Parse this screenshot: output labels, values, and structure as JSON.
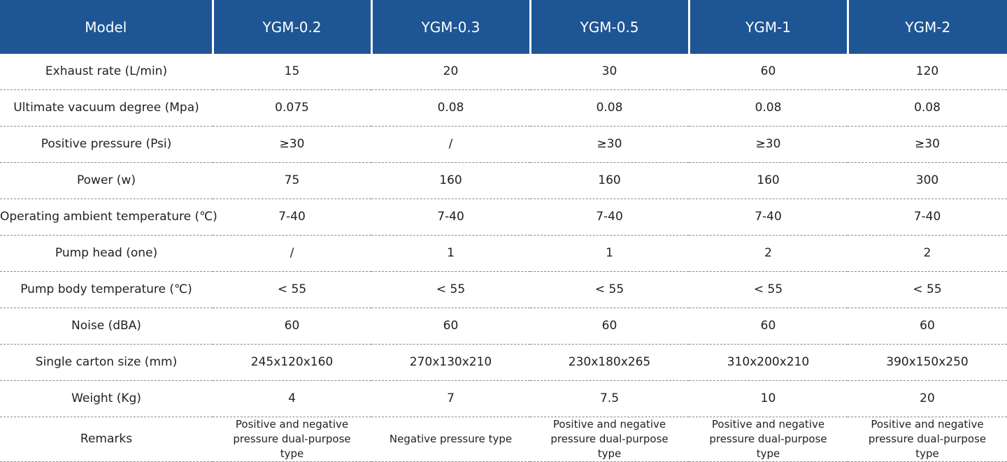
{
  "header": {
    "model_label": "Model",
    "models": [
      "YGM-0.2",
      "YGM-0.3",
      "YGM-0.5",
      "YGM-1",
      "YGM-2"
    ]
  },
  "rows": [
    {
      "label": "Exhaust rate (L/min)",
      "values": [
        "15",
        "20",
        "30",
        "60",
        "120"
      ]
    },
    {
      "label": "Ultimate vacuum degree (Mpa)",
      "values": [
        "0.075",
        "0.08",
        "0.08",
        "0.08",
        "0.08"
      ]
    },
    {
      "label": "Positive pressure (Psi)",
      "values": [
        "≥30",
        "/",
        "≥30",
        "≥30",
        "≥30"
      ]
    },
    {
      "label": "Power (w)",
      "values": [
        "75",
        "160",
        "160",
        "160",
        "300"
      ]
    },
    {
      "label": "Operating ambient temperature (℃)",
      "values": [
        "7-40",
        "7-40",
        "7-40",
        "7-40",
        "7-40"
      ]
    },
    {
      "label": "Pump head (one)",
      "values": [
        "/",
        "1",
        "1",
        "2",
        "2"
      ]
    },
    {
      "label": "Pump body temperature (℃)",
      "values": [
        "< 55",
        "< 55",
        "< 55",
        "< 55",
        "< 55"
      ]
    },
    {
      "label": "Noise (dBA)",
      "values": [
        "60",
        "60",
        "60",
        "60",
        "60"
      ]
    },
    {
      "label": "Single carton size (mm)",
      "values": [
        "245x120x160",
        "270x130x210",
        "230x180x265",
        "310x200x210",
        "390x150x250"
      ]
    },
    {
      "label": "Weight (Kg)",
      "values": [
        "4",
        "7",
        "7.5",
        "10",
        "20"
      ]
    },
    {
      "label": "Remarks",
      "values": [
        "Positive and negative pressure dual-purpose type",
        "Negative pressure type",
        "Positive and negative pressure dual-purpose type",
        "Positive and negative pressure dual-purpose type",
        "Positive and negative pressure dual-purpose type"
      ]
    }
  ],
  "colors": {
    "header_bg": "#1e5595",
    "header_text": "#ffffff",
    "body_text": "#222222",
    "divider": "#8a8a8a"
  }
}
